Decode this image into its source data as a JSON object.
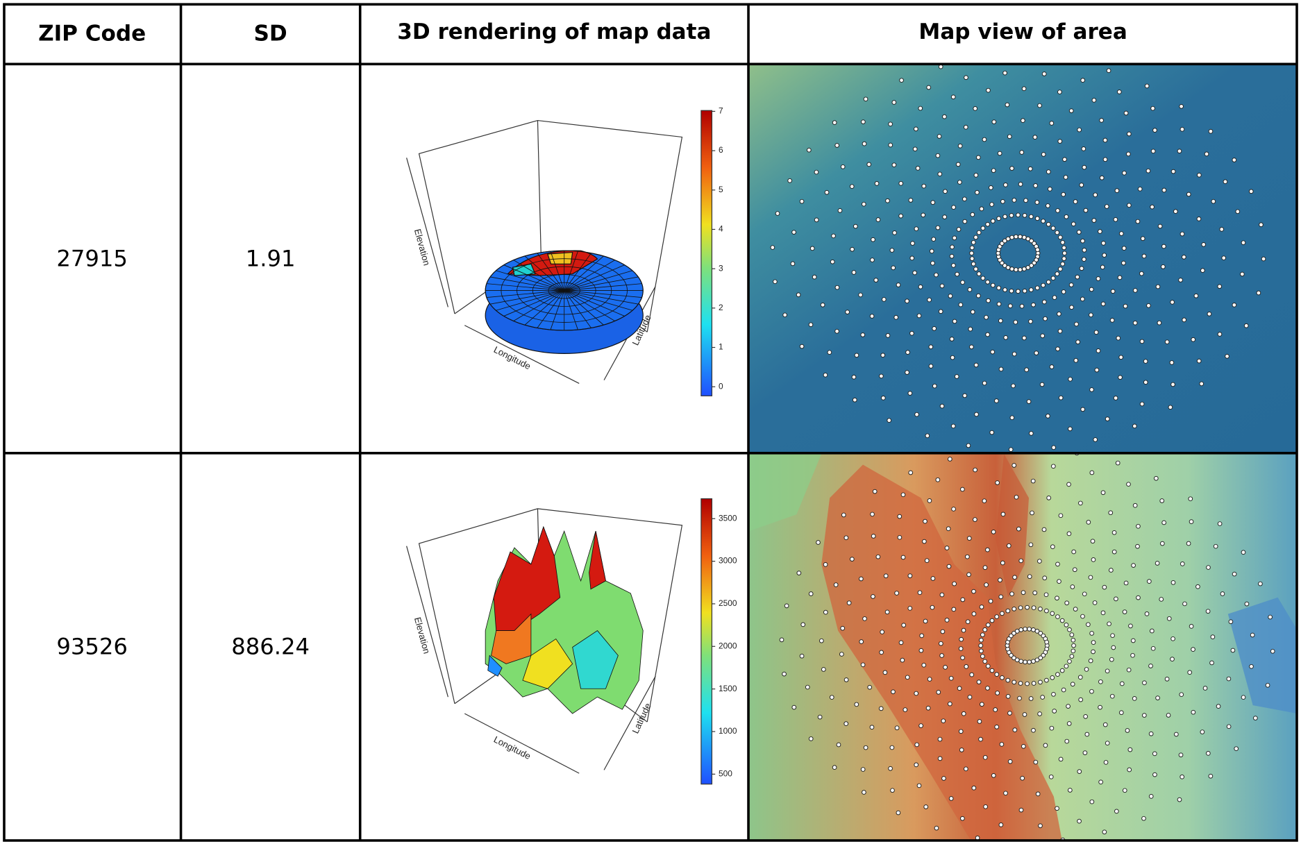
{
  "table": {
    "header": [
      "ZIP Code",
      "SD",
      "3D rendering of map data",
      "Map view of area"
    ],
    "rows": [
      {
        "zip": "27915",
        "sd": "1.91",
        "render": {
          "axes": [
            "Elevation",
            "Longitude",
            "Latitude"
          ],
          "colorbar_ticks": [
            0,
            1,
            2,
            3,
            4,
            5,
            6,
            7
          ]
        }
      },
      {
        "zip": "93526",
        "sd": "886.24",
        "render": {
          "axes": [
            "Elevation",
            "Longitude",
            "Latitude"
          ],
          "colorbar_ticks": [
            500,
            1000,
            1500,
            2000,
            2500,
            3000,
            3500
          ]
        }
      }
    ]
  }
}
